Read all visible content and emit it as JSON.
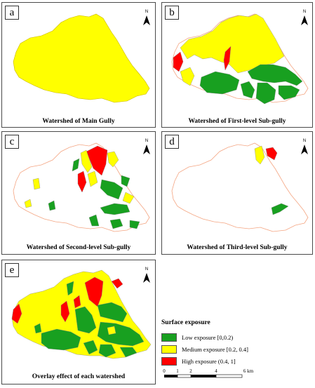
{
  "panels": [
    {
      "tag": "a",
      "caption": "Watershed of Main Gully"
    },
    {
      "tag": "b",
      "caption": "Watershed of First-level Sub-gully"
    },
    {
      "tag": "c",
      "caption": "Watershed of Second-level Sub-gully"
    },
    {
      "tag": "d",
      "caption": "Watershed of Third-level Sub-gully"
    },
    {
      "tag": "e",
      "caption": "Overlay effect of each watershed"
    }
  ],
  "north_label": "N",
  "legend": {
    "title": "Surface exposure",
    "items": [
      {
        "label": "Low exposure [0,0.2)",
        "color": "#18a020"
      },
      {
        "label": "Medium exposure [0.2, 0.4]",
        "color": "#ffff00"
      },
      {
        "label": "High exposure (0.4, 1]",
        "color": "#ff0000"
      }
    ]
  },
  "scale_bar": {
    "ticks": [
      "0",
      "1",
      "2",
      "4",
      "6 km"
    ]
  },
  "colors": {
    "outline": "#f4a582",
    "border": "#4a4a4a"
  }
}
